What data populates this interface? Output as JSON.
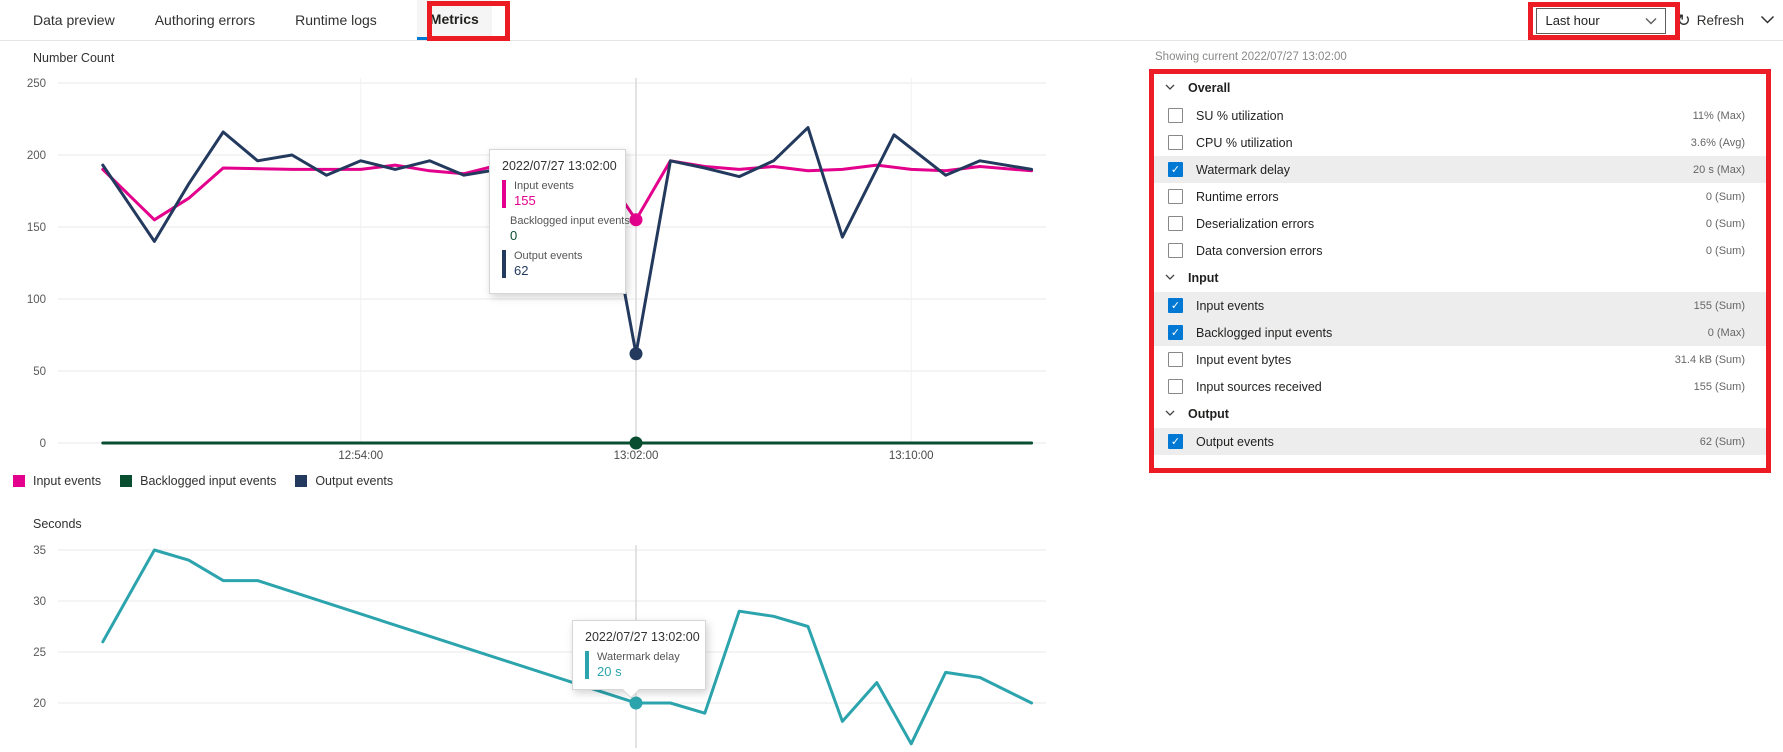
{
  "tabs": [
    {
      "label": "Data preview",
      "selected": false
    },
    {
      "label": "Authoring errors",
      "selected": false
    },
    {
      "label": "Runtime logs",
      "selected": false
    },
    {
      "label": "Metrics",
      "selected": true
    }
  ],
  "toolbar": {
    "time_range": "Last hour",
    "refresh_label": "Refresh"
  },
  "panel": {
    "showing_current": "Showing current 2022/07/27 13:02:00",
    "sections": [
      {
        "label": "Overall",
        "items": [
          {
            "label": "SU % utilization",
            "value": "11% (Max)",
            "checked": false,
            "highlighted": false
          },
          {
            "label": "CPU % utilization",
            "value": "3.6% (Avg)",
            "checked": false,
            "highlighted": false
          },
          {
            "label": "Watermark delay",
            "value": "20 s (Max)",
            "checked": true,
            "highlighted": true
          },
          {
            "label": "Runtime errors",
            "value": "0 (Sum)",
            "checked": false,
            "highlighted": false
          },
          {
            "label": "Deserialization errors",
            "value": "0 (Sum)",
            "checked": false,
            "highlighted": false
          },
          {
            "label": "Data conversion errors",
            "value": "0 (Sum)",
            "checked": false,
            "highlighted": false
          }
        ]
      },
      {
        "label": "Input",
        "items": [
          {
            "label": "Input events",
            "value": "155 (Sum)",
            "checked": true,
            "highlighted": true
          },
          {
            "label": "Backlogged input events",
            "value": "0 (Max)",
            "checked": true,
            "highlighted": true
          },
          {
            "label": "Input event bytes",
            "value": "31.4 kB (Sum)",
            "checked": false,
            "highlighted": false
          },
          {
            "label": "Input sources received",
            "value": "155 (Sum)",
            "checked": false,
            "highlighted": false
          }
        ]
      },
      {
        "label": "Output",
        "items": [
          {
            "label": "Output events",
            "value": "62 (Sum)",
            "checked": true,
            "highlighted": true
          }
        ]
      }
    ]
  },
  "legend": [
    {
      "label": "Input events",
      "color": "#E3008C"
    },
    {
      "label": "Backlogged input events",
      "color": "#0A4E32"
    },
    {
      "label": "Output events",
      "color": "#233A5E"
    }
  ],
  "tooltips": {
    "chart1": {
      "date": "2022/07/27 13:02:00",
      "entries": [
        {
          "label": "Input events",
          "value": "155",
          "color": "#E3008C"
        },
        {
          "label": "Backlogged input events",
          "value": "0",
          "color": "#0A4E32"
        },
        {
          "label": "Output events",
          "value": "62",
          "color": "#233A5E"
        }
      ]
    },
    "chart2": {
      "date": "2022/07/27 13:02:00",
      "entries": [
        {
          "label": "Watermark delay",
          "value": "20 s",
          "color": "#2CA4AD"
        }
      ]
    }
  },
  "chart_data": [
    {
      "type": "line",
      "title": "Number Count",
      "ylabel": "Number Count",
      "ylim": [
        0,
        250
      ],
      "y_ticks": [
        0,
        50,
        100,
        150,
        200,
        250
      ],
      "x_tick_labels": [
        "12:54:00",
        "13:02:00",
        "13:10:00"
      ],
      "crosshair_time": "13:02:00",
      "grid": true,
      "legend_position": "bottom",
      "series": [
        {
          "name": "Input events",
          "color": "#E3008C",
          "highlight_value": 155,
          "points": [
            [
              "12:46:30",
              190
            ],
            [
              "12:48:00",
              155
            ],
            [
              "12:49:00",
              170
            ],
            [
              "12:50:00",
              191
            ],
            [
              "12:52:00",
              190
            ],
            [
              "12:54:00",
              190
            ],
            [
              "12:55:00",
              193
            ],
            [
              "12:56:00",
              189
            ],
            [
              "12:57:00",
              187
            ],
            [
              "12:58:30",
              196
            ],
            [
              "13:00:00",
              186
            ],
            [
              "13:01:00",
              190
            ],
            [
              "13:02:00",
              155
            ],
            [
              "13:03:00",
              196
            ],
            [
              "13:04:00",
              192
            ],
            [
              "13:05:00",
              190
            ],
            [
              "13:06:00",
              192
            ],
            [
              "13:07:00",
              189
            ],
            [
              "13:08:00",
              190
            ],
            [
              "13:09:00",
              193
            ],
            [
              "13:10:00",
              190
            ],
            [
              "13:11:00",
              189
            ],
            [
              "13:12:00",
              192
            ],
            [
              "13:13:30",
              189
            ]
          ]
        },
        {
          "name": "Backlogged input events",
          "color": "#0A4E32",
          "highlight_value": 0,
          "points": [
            [
              "12:46:30",
              0
            ],
            [
              "13:13:30",
              0
            ]
          ]
        },
        {
          "name": "Output events",
          "color": "#233A5E",
          "highlight_value": 62,
          "points": [
            [
              "12:46:30",
              193
            ],
            [
              "12:48:00",
              140
            ],
            [
              "12:49:00",
              180
            ],
            [
              "12:50:00",
              216
            ],
            [
              "12:51:00",
              196
            ],
            [
              "12:52:00",
              200
            ],
            [
              "12:53:00",
              186
            ],
            [
              "12:54:00",
              196
            ],
            [
              "12:55:00",
              190
            ],
            [
              "12:56:00",
              196
            ],
            [
              "12:57:00",
              186
            ],
            [
              "12:58:00",
              190
            ],
            [
              "12:59:00",
              186
            ],
            [
              "13:00:00",
              190
            ],
            [
              "13:01:00",
              191
            ],
            [
              "13:02:00",
              62
            ],
            [
              "13:03:00",
              196
            ],
            [
              "13:04:00",
              191
            ],
            [
              "13:05:00",
              185
            ],
            [
              "13:06:00",
              196
            ],
            [
              "13:07:00",
              219
            ],
            [
              "13:08:00",
              143
            ],
            [
              "13:09:30",
              214
            ],
            [
              "13:11:00",
              186
            ],
            [
              "13:12:00",
              196
            ],
            [
              "13:13:30",
              190
            ]
          ]
        }
      ]
    },
    {
      "type": "line",
      "title": "Seconds",
      "ylabel": "Seconds",
      "ylim": [
        20,
        35
      ],
      "y_ticks": [
        20,
        25,
        30,
        35
      ],
      "x_tick_labels": [],
      "crosshair_time": "13:02:00",
      "grid": true,
      "series": [
        {
          "name": "Watermark delay",
          "color": "#2CA4AD",
          "highlight_value": 20,
          "points": [
            [
              "12:46:30",
              26
            ],
            [
              "12:48:00",
              35
            ],
            [
              "12:49:00",
              34
            ],
            [
              "12:50:00",
              32
            ],
            [
              "12:51:00",
              32
            ],
            [
              "13:02:00",
              20
            ],
            [
              "13:03:00",
              20
            ],
            [
              "13:04:00",
              19
            ],
            [
              "13:05:00",
              29
            ],
            [
              "13:06:00",
              28.5
            ],
            [
              "13:07:00",
              27.5
            ],
            [
              "13:08:00",
              18.2
            ],
            [
              "13:09:00",
              22
            ],
            [
              "13:10:00",
              16
            ],
            [
              "13:11:00",
              23
            ],
            [
              "13:12:00",
              22.5
            ],
            [
              "13:13:30",
              20
            ]
          ]
        }
      ]
    }
  ],
  "colors": {
    "accent": "#0078D4",
    "annotation_red": "#EC1C24",
    "row_highlight": "#EDEDED",
    "input_events": "#E3008C",
    "backlogged_input_events": "#0A4E32",
    "output_events": "#233A5E",
    "watermark_delay": "#2CA4AD"
  }
}
